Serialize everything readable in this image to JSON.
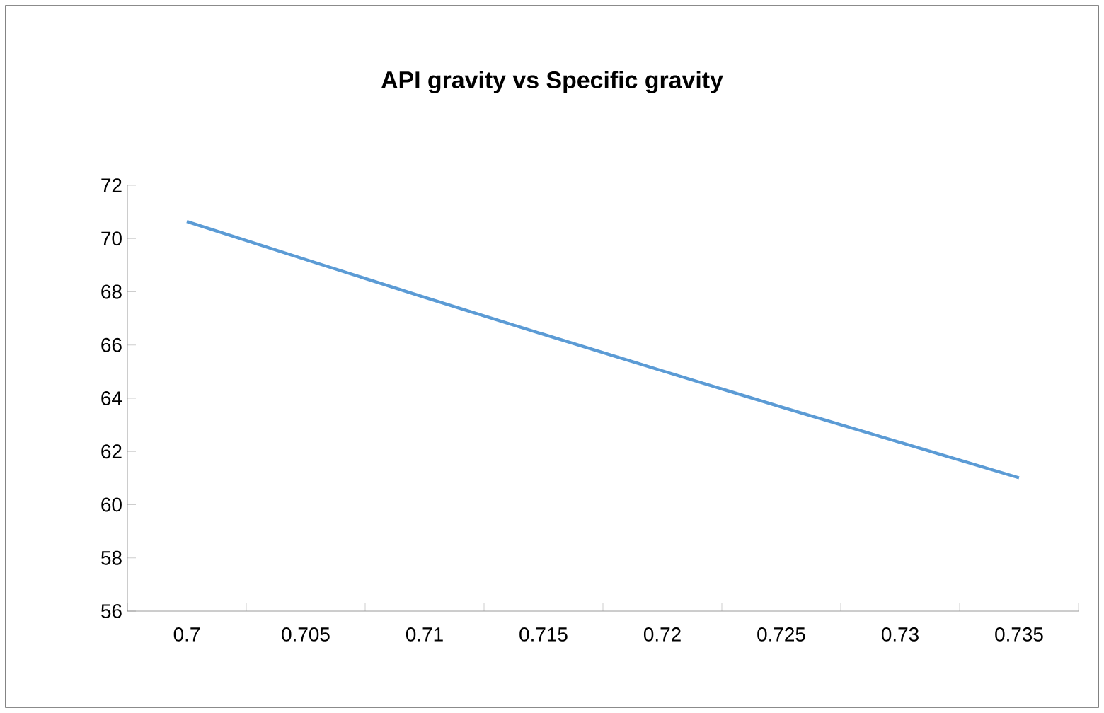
{
  "chart_data": {
    "type": "line",
    "title": "API gravity vs Specific gravity",
    "categories": [
      "0.7",
      "0.705",
      "0.71",
      "0.715",
      "0.72",
      "0.725",
      "0.73",
      "0.735"
    ],
    "series": [
      {
        "color": "#5b9bd5",
        "values": [
          70.64,
          69.21,
          67.79,
          66.4,
          65.03,
          63.67,
          62.34,
          61.01
        ]
      }
    ],
    "ylim": [
      56,
      72
    ],
    "yticks": [
      56,
      58,
      60,
      62,
      64,
      66,
      68,
      70,
      72
    ],
    "marker": "none",
    "line_style": "solid"
  }
}
